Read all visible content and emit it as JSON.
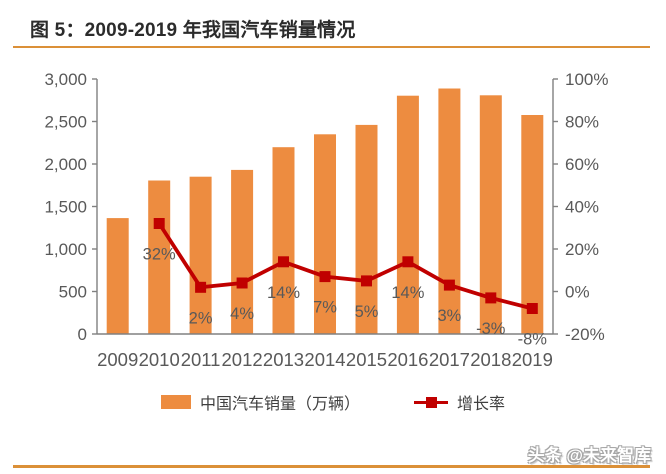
{
  "header": {
    "title": "图 5：2009-2019 年我国汽车销量情况"
  },
  "chart_data": {
    "type": "bar",
    "combo": "bar+line dual-axis",
    "categories": [
      "2009",
      "2010",
      "2011",
      "2012",
      "2013",
      "2014",
      "2015",
      "2016",
      "2017",
      "2018",
      "2019"
    ],
    "series": [
      {
        "name": "中国汽车销量（万辆）",
        "type": "bar",
        "axis": "left",
        "color": "#ED8C40",
        "values": [
          1364,
          1806,
          1851,
          1931,
          2198,
          2349,
          2460,
          2803,
          2888,
          2808,
          2577
        ]
      },
      {
        "name": "增长率",
        "type": "line",
        "axis": "right",
        "color": "#C00000",
        "values": [
          null,
          32,
          2,
          4,
          14,
          7,
          5,
          14,
          3,
          -3,
          -8
        ],
        "point_labels": [
          "",
          "32%",
          "2%",
          "4%",
          "14%",
          "7%",
          "5%",
          "14%",
          "3%",
          "-3%",
          "-8%"
        ]
      }
    ],
    "left_axis": {
      "min": 0,
      "max": 3000,
      "tick_labels": [
        "0",
        "500",
        "1,000",
        "1,500",
        "2,000",
        "2,500",
        "3,000"
      ]
    },
    "right_axis": {
      "min": -20,
      "max": 100,
      "tick_labels": [
        "-20%",
        "0%",
        "20%",
        "40%",
        "60%",
        "80%",
        "100%"
      ]
    },
    "grid": false,
    "legend_position": "bottom"
  },
  "watermark": {
    "text": "头条 @未来智库"
  },
  "colors": {
    "bar": "#ED8C40",
    "line": "#C00000",
    "accent_rule": "#DB9038",
    "axis_line": "#808080",
    "tick_text": "#595959",
    "point_label_text": "#595959",
    "title_text": "#2B2B2B",
    "legend_text": "#3F3F3F"
  }
}
